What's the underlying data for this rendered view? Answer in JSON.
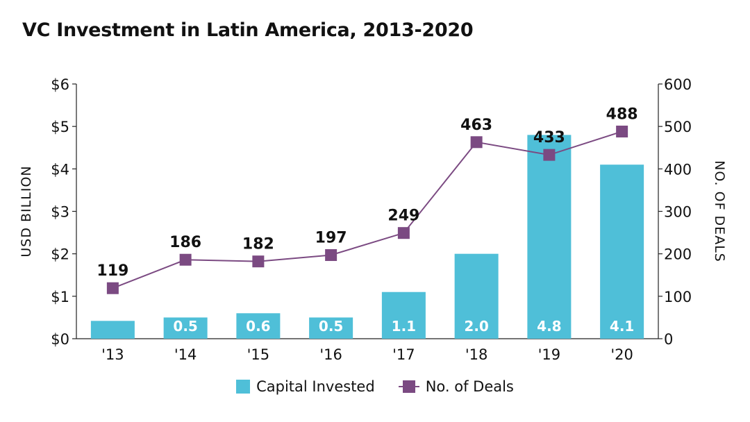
{
  "chart_data": {
    "type": "bar",
    "title": "VC Investment in Latin America, 2013-2020",
    "categories": [
      "'13",
      "'14",
      "'15",
      "'16",
      "'17",
      "'18",
      "'19",
      "'20"
    ],
    "series": [
      {
        "name": "Capital Invested",
        "type": "bar",
        "axis": "left",
        "values": [
          0.42,
          0.5,
          0.6,
          0.5,
          1.1,
          2.0,
          4.8,
          4.1
        ],
        "labels": [
          "",
          "0.5",
          "0.6",
          "0.5",
          "1.1",
          "2.0",
          "4.8",
          "4.1"
        ],
        "color": "#4fbfd8"
      },
      {
        "name": "No. of Deals",
        "type": "line",
        "axis": "right",
        "values": [
          119,
          186,
          182,
          197,
          249,
          463,
          433,
          488
        ],
        "labels": [
          "119",
          "186",
          "182",
          "197",
          "249",
          "463",
          "433",
          "488"
        ],
        "color": "#7b4a82"
      }
    ],
    "y_left": {
      "label": "USD BILLION",
      "range": [
        0,
        6
      ],
      "ticks": [
        0,
        1,
        2,
        3,
        4,
        5,
        6
      ],
      "tick_labels": [
        "$0",
        "$1",
        "$2",
        "$3",
        "$4",
        "$5",
        "$6"
      ]
    },
    "y_right": {
      "label": "NO. OF DEALS",
      "range": [
        0,
        600
      ],
      "ticks": [
        0,
        100,
        200,
        300,
        400,
        500,
        600
      ],
      "tick_labels": [
        "0",
        "100",
        "200",
        "300",
        "400",
        "500",
        "600"
      ]
    },
    "grid": false,
    "legend_position": "bottom-center"
  }
}
